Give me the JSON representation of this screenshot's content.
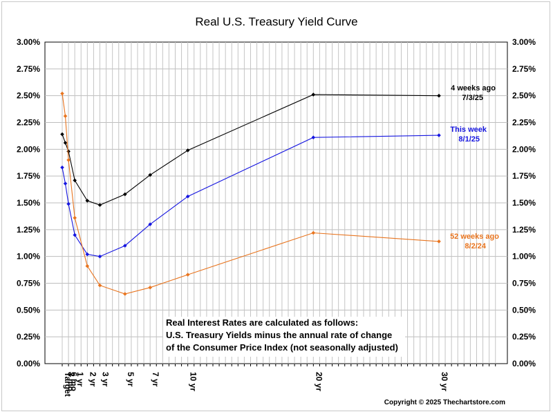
{
  "chart_data": {
    "type": "line",
    "title": "Real U.S. Treasury Yield Curve",
    "categories": [
      "Target",
      "3 mo",
      "6 mo",
      "1 yr",
      "2 yr",
      "3 yr",
      "5 yr",
      "7 yr",
      "10 yr",
      "20 yr",
      "30 yr"
    ],
    "x_positions": [
      0,
      0.25,
      0.5,
      1,
      2,
      3,
      5,
      7,
      10,
      20,
      30
    ],
    "ylim": [
      0,
      3.0
    ],
    "y_tick_labels": [
      "0.00%",
      "0.25%",
      "0.50%",
      "0.75%",
      "1.00%",
      "1.25%",
      "1.50%",
      "1.75%",
      "2.00%",
      "2.25%",
      "2.50%",
      "2.75%",
      "3.00%"
    ],
    "grid": true,
    "series": [
      {
        "name": "4 weeks ago",
        "date": "7/3/25",
        "color": "#000000",
        "values": [
          2.14,
          2.06,
          1.98,
          1.71,
          1.52,
          1.48,
          1.58,
          1.76,
          1.99,
          2.51,
          2.5
        ]
      },
      {
        "name": "This week",
        "date": "8/1/25",
        "color": "#1515e0",
        "values": [
          1.83,
          1.68,
          1.49,
          1.2,
          1.02,
          1.0,
          1.1,
          1.3,
          1.56,
          2.11,
          2.13
        ]
      },
      {
        "name": "52 weeks ago",
        "date": "8/2/24",
        "color": "#e8741e",
        "values": [
          2.52,
          2.31,
          1.9,
          1.36,
          0.91,
          0.73,
          0.65,
          0.71,
          0.83,
          1.22,
          1.14
        ]
      }
    ],
    "note_lines": [
      "Real Interest Rates are calculated as follows:",
      "U.S. Treasury Yields minus the annual rate of change",
      "of the Consumer Price Index (not seasonally adjusted)"
    ],
    "copyright": "Copyright © 2025 Thechartstore.com"
  }
}
